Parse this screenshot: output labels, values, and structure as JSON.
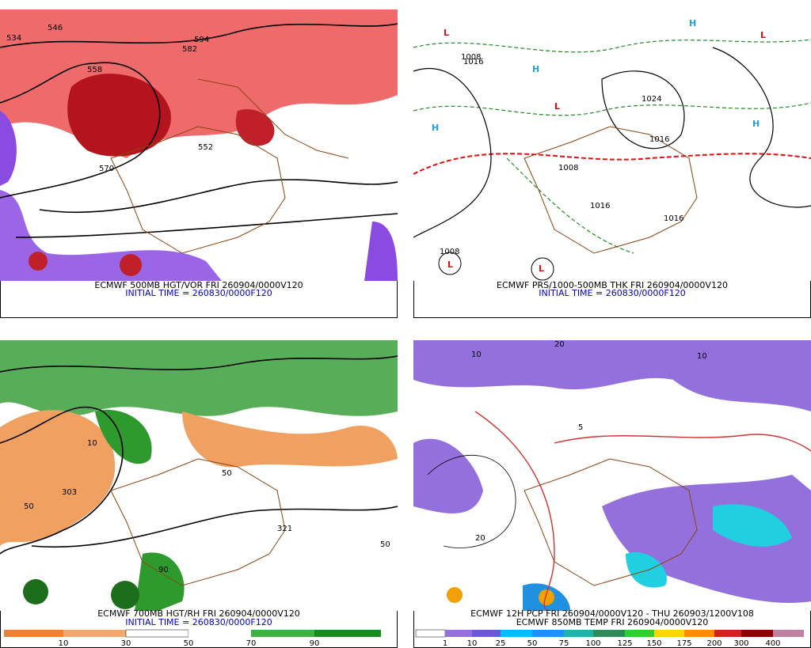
{
  "panels": [
    {
      "caption": "ECMWF 500MB HGT/VOR FRI 260904/0000V120",
      "initial_time": "INITIAL TIME = 260830/0000F120",
      "labels": [
        "534",
        "546",
        "558",
        "570",
        "582",
        "594",
        "552"
      ]
    },
    {
      "caption": "ECMWF PRS/1000-500MB THK FRI 260904/0000V120",
      "initial_time": "INITIAL TIME = 260830/0000F120",
      "labels": [
        "1016",
        "1008",
        "1024",
        "1016",
        "1008",
        "1016",
        "1016",
        "1008"
      ]
    },
    {
      "caption": "ECMWF 700MB HGT/RH FRI 260904/0000V120",
      "initial_time": "INITIAL TIME = 260830/0000F120",
      "labels": [
        "303",
        "50",
        "10",
        "50",
        "90",
        "321",
        "50"
      ],
      "colorbar": [
        "10",
        "30",
        "50",
        "70",
        "90"
      ]
    },
    {
      "caption": "ECMWF 12H PCP FRI 260904/0000V120 - THU 260903/1200V108",
      "initial_time": "ECMWF 850MB TEMP FRI 260904/0000V120",
      "labels": [
        "10",
        "20",
        "10",
        "5",
        "20"
      ],
      "colorbar": [
        "1",
        "10",
        "25",
        "50",
        "75",
        "100",
        "125",
        "150",
        "175",
        "200",
        "300",
        "400"
      ]
    }
  ]
}
